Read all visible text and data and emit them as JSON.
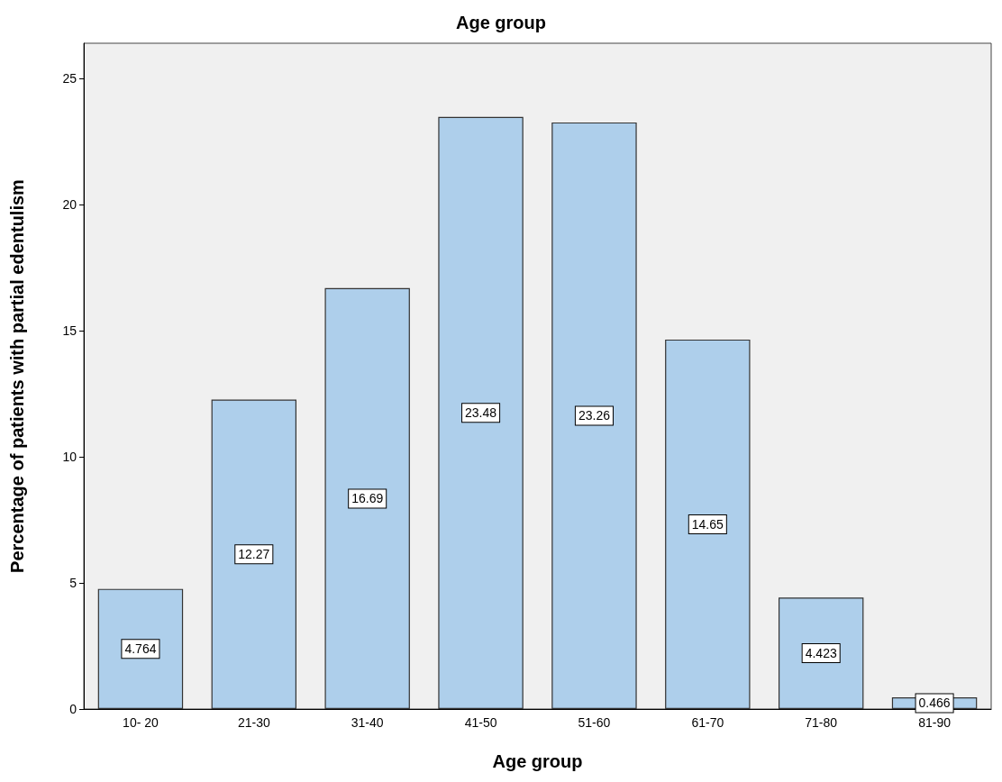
{
  "chart_data": {
    "type": "bar",
    "title": "Age group",
    "xlabel": "Age group",
    "ylabel": "Percentage of patients with partial edentulism",
    "categories": [
      "10- 20",
      "21-30",
      "31-40",
      "41-50",
      "51-60",
      "61-70",
      "71-80",
      "81-90"
    ],
    "values": [
      4.764,
      12.27,
      16.69,
      23.48,
      23.26,
      14.65,
      4.423,
      0.466
    ],
    "color": "#aecfeb",
    "ylim": [
      0,
      26.4
    ],
    "yticks": [
      0,
      5,
      10,
      15,
      20,
      25
    ],
    "grid": false,
    "data_labels": true
  }
}
